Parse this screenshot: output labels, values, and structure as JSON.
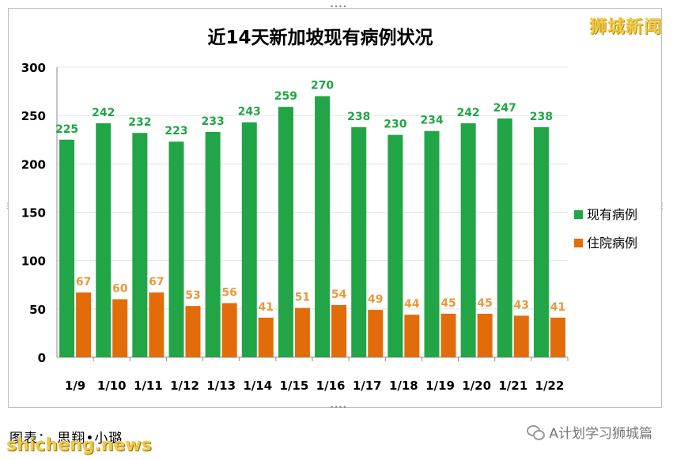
{
  "brand": {
    "watermark_top": "狮城新闻",
    "site": "shicheng.news"
  },
  "footer": {
    "credit": "图表： 思翔•小璐",
    "account": "A计划学习狮城篇",
    "account_icon": "wechat-icon"
  },
  "colors": {
    "series_existing": "#21a546",
    "series_hospital": "#e36c0a",
    "label_existing": "#21a546",
    "label_hospital": "#e89a3b",
    "watermark": "#f2c94c"
  },
  "chart_data": {
    "type": "bar",
    "title": "近14天新加坡现有病例状况",
    "xlabel": "",
    "ylabel": "",
    "ylim": [
      0,
      300
    ],
    "yticks": [
      0,
      50,
      100,
      150,
      200,
      250,
      300
    ],
    "grid": true,
    "legend_placement": "right",
    "categories": [
      "1/9",
      "1/10",
      "1/11",
      "1/12",
      "1/13",
      "1/14",
      "1/15",
      "1/16",
      "1/17",
      "1/18",
      "1/19",
      "1/20",
      "1/21",
      "1/22"
    ],
    "series": [
      {
        "name": "现有病例",
        "color": "#21a546",
        "values": [
          225,
          242,
          232,
          223,
          233,
          243,
          259,
          270,
          238,
          230,
          234,
          242,
          247,
          238
        ]
      },
      {
        "name": "住院病例",
        "color": "#e36c0a",
        "values": [
          67,
          60,
          67,
          53,
          56,
          41,
          51,
          54,
          49,
          44,
          45,
          45,
          43,
          41
        ]
      }
    ]
  }
}
